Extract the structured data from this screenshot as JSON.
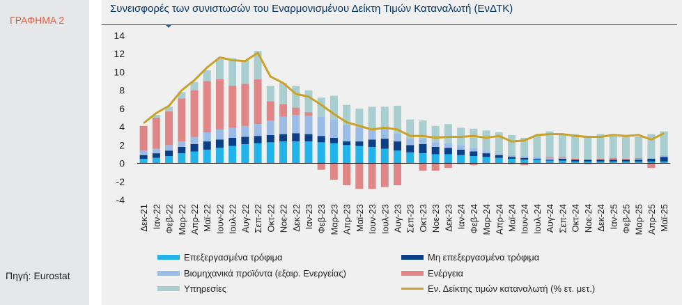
{
  "sidebar": {
    "chart_label": "ΓΡΑΦΗΜΑ 2",
    "source": "Πηγή: Eurostat"
  },
  "chart_data": {
    "type": "bar",
    "stacked": true,
    "title": "Συνεισφορές των συνιστωσών του Εναρμονισμένου Δείκτη Τιμών Καταναλωτή (ΕνΔΤΚ)",
    "ylim": [
      -4,
      14
    ],
    "yticks": [
      14,
      12,
      10,
      8,
      6,
      4,
      2,
      0,
      -2,
      -4
    ],
    "grid": false,
    "legend_position": "bottom",
    "categories": [
      "Δεκ-21",
      "Ιαν-22",
      "Φεβ-22",
      "Μαρ-22",
      "Απρ-22",
      "Μαϊ-22",
      "Ιουν-22",
      "Ιουλ-22",
      "Αυγ-22",
      "Σεπ-22",
      "Οκτ-22",
      "Νοε-22",
      "Δεκ-22",
      "Ιαν-23",
      "Φεβ-23",
      "Μαρ-23",
      "Απρ-23",
      "Μαϊ-23",
      "Ιουν-23",
      "Ιουλ-23",
      "Αυγ-23",
      "Σεπ-23",
      "Οκτ-23",
      "Νοε-23",
      "Δεκ-23",
      "Ιαν-24",
      "Φεβ-24",
      "Μαρ-24",
      "Απρ-24",
      "Μαϊ-24",
      "Ιουν-24",
      "Ιουλ-24",
      "Αυγ-24",
      "Σεπ-24",
      "Οκτ-24",
      "Νοε-24",
      "Δεκ-24",
      "Ιαν-25",
      "Φεβ-25",
      "Μαρ-25",
      "Απρ-25",
      "Μαϊ-25"
    ],
    "xtick_labels": [
      "Δεκ-21",
      "Ιαν-22",
      "Φεβ-22",
      "Μαρ-22",
      "Απρ-22",
      "Μαϊ-22",
      "Ιουν-22",
      "Ιουλ-22",
      "Αυγ-22",
      "Σεπ-22",
      "Οκτ-22",
      "Νοε-22",
      "Δεκ-22",
      "Ιαν-23",
      "Φεβ-23",
      "Μαρ-23",
      "Απρ-23",
      "Μαϊ-23",
      "Ιουν-23",
      "Ιουλ-23",
      "Αυγ-23",
      "Σεπ-23",
      "Οκτ-23",
      "Νοε-23",
      "Δεκ-23",
      "Ιαν-24",
      "Φεβ-24",
      "Μαρ-24",
      "Απρ-24",
      "Μαϊ-24",
      "Ιουν-24",
      "Ιουλ-24",
      "Αυγ-24",
      "Σεπ-24",
      "Οκτ-24",
      "Νοε-24",
      "Δεκ-24",
      "Ιαν-25",
      "Φεβ-25",
      "Μαρ-25",
      "Απρ-25",
      "Μαϊ-25"
    ],
    "series": [
      {
        "name": "Επεξεργασμένα τρόφιμα",
        "color": "#21b4ea",
        "kind": "bar",
        "values": [
          0.5,
          0.6,
          0.8,
          1.1,
          1.3,
          1.5,
          1.7,
          1.9,
          2.1,
          2.2,
          2.3,
          2.4,
          2.4,
          2.4,
          2.3,
          2.2,
          2.0,
          1.9,
          1.8,
          1.6,
          1.4,
          1.2,
          1.1,
          1.0,
          1.0,
          0.9,
          0.8,
          0.7,
          0.6,
          0.5,
          0.4,
          0.4,
          0.3,
          0.3,
          0.2,
          0.2,
          0.2,
          0.2,
          0.2,
          0.2,
          0.2,
          0.2
        ]
      },
      {
        "name": "Μη επεξεργασμένα τρόφιμα",
        "color": "#0b3f86",
        "kind": "bar",
        "values": [
          0.4,
          0.5,
          0.6,
          0.7,
          0.8,
          0.9,
          0.9,
          0.9,
          0.8,
          0.8,
          0.8,
          0.8,
          0.9,
          0.8,
          0.7,
          0.6,
          0.4,
          0.5,
          0.8,
          1.1,
          1.0,
          0.8,
          1.0,
          0.8,
          0.7,
          0.6,
          0.5,
          0.4,
          0.3,
          0.2,
          0.2,
          0.1,
          0.1,
          0.2,
          0.2,
          0.2,
          0.2,
          0.2,
          0.2,
          0.2,
          0.3,
          0.5
        ]
      },
      {
        "name": "Βιομηχανικά προϊόντα (εξαιρ. Ενεργείας)",
        "color": "#9bbce6",
        "kind": "bar",
        "values": [
          0.5,
          0.5,
          0.6,
          0.6,
          0.8,
          1.0,
          1.1,
          1.1,
          1.2,
          1.3,
          1.6,
          1.9,
          2.0,
          2.0,
          2.1,
          2.0,
          1.8,
          1.5,
          1.3,
          1.1,
          0.9,
          0.7,
          0.6,
          0.5,
          0.5,
          0.5,
          0.4,
          0.3,
          0.2,
          0.2,
          0.2,
          0.2,
          0.2,
          0.1,
          0.0,
          0.0,
          0.0,
          0.0,
          0.0,
          0.1,
          0.1,
          0.2
        ]
      },
      {
        "name": "Ενέργεια",
        "color": "#e18686",
        "kind": "bar",
        "values": [
          2.7,
          3.4,
          3.7,
          4.7,
          5.1,
          5.6,
          5.5,
          4.6,
          4.6,
          4.9,
          2.1,
          1.4,
          0.8,
          0.4,
          -0.7,
          -1.8,
          -2.4,
          -2.8,
          -2.8,
          -2.6,
          -2.4,
          0.0,
          -0.8,
          -0.8,
          -0.5,
          -0.1,
          -0.2,
          0.0,
          0.0,
          -0.1,
          -0.2,
          0.0,
          0.1,
          0.1,
          0.1,
          -0.1,
          0.1,
          0.2,
          0.1,
          0.1,
          -0.5,
          0.0
        ]
      },
      {
        "name": "Υπηρεσίες",
        "color": "#a8cecf",
        "kind": "bar",
        "values": [
          0.0,
          0.3,
          0.5,
          0.7,
          0.9,
          1.2,
          2.2,
          3.0,
          2.6,
          3.1,
          1.7,
          2.3,
          2.4,
          2.4,
          2.1,
          2.6,
          2.2,
          2.1,
          2.3,
          2.4,
          3.0,
          2.1,
          2.0,
          1.8,
          2.1,
          1.9,
          2.1,
          2.2,
          2.3,
          2.2,
          2.0,
          2.4,
          2.8,
          2.5,
          2.7,
          2.6,
          2.7,
          2.6,
          2.6,
          2.3,
          2.6,
          2.6
        ]
      },
      {
        "name": "Εν. Δείκτης τιμών καταναλωτή (% ετ. μετ.)",
        "color": "#c9a227",
        "kind": "line",
        "values": [
          4.4,
          5.5,
          6.3,
          8.0,
          9.1,
          10.5,
          11.6,
          11.3,
          11.2,
          12.1,
          9.5,
          8.8,
          7.6,
          7.3,
          6.4,
          5.4,
          4.5,
          4.1,
          3.7,
          3.9,
          3.7,
          3.0,
          3.0,
          2.8,
          2.9,
          2.9,
          3.0,
          2.8,
          3.0,
          2.4,
          2.5,
          3.1,
          3.2,
          3.2,
          3.0,
          2.9,
          2.9,
          3.1,
          3.0,
          3.1,
          2.6,
          3.3
        ]
      }
    ]
  }
}
